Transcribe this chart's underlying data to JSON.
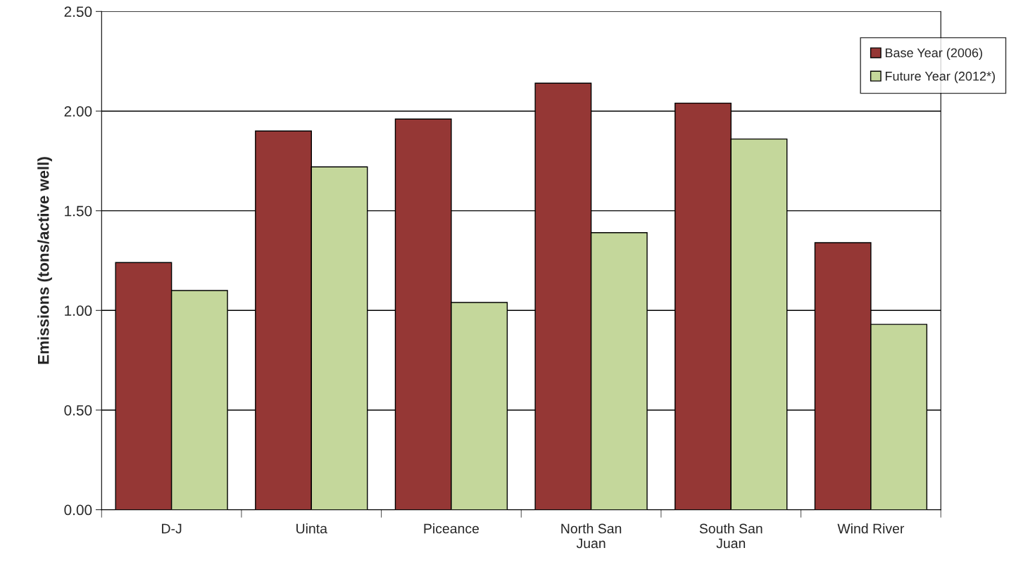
{
  "chart_data": {
    "type": "bar",
    "ylabel": "Emissions (tons/active well)",
    "categories": [
      "D-J",
      "Uinta",
      "Piceance",
      "North San\nJuan",
      "South San\nJuan",
      "Wind River"
    ],
    "series": [
      {
        "name": "Base Year (2006)",
        "color": "#953735",
        "values": [
          1.24,
          1.9,
          1.96,
          2.14,
          2.04,
          1.34
        ]
      },
      {
        "name": "Future Year (2012*)",
        "color": "#c4d79b",
        "values": [
          1.1,
          1.72,
          1.04,
          1.39,
          1.86,
          0.93
        ]
      }
    ],
    "ylim": [
      0,
      2.5
    ],
    "yticks": [
      {
        "value": 0,
        "label": "0.00"
      },
      {
        "value": 0.5,
        "label": "0.50"
      },
      {
        "value": 1,
        "label": "1.00"
      },
      {
        "value": 1.5,
        "label": "1.50"
      },
      {
        "value": 2,
        "label": "2.00"
      },
      {
        "value": 2.5,
        "label": "2.50"
      }
    ],
    "grid": "y",
    "legend": "top right"
  }
}
